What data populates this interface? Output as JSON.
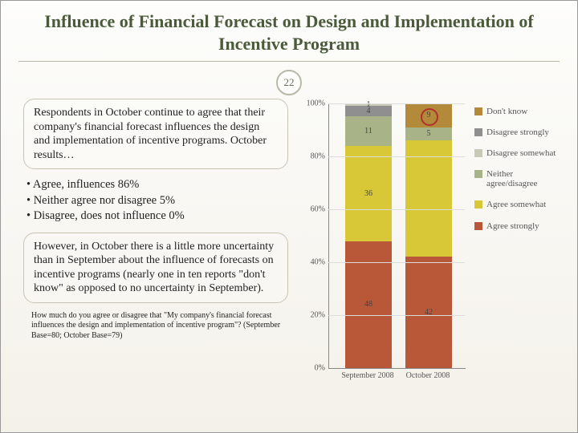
{
  "title": "Influence of Financial Forecast on Design and Implementation of Incentive Program",
  "page_number": "22",
  "box1": "Respondents in October continue to agree that their company's financial forecast influences the design and implementation of incentive programs.  October results…",
  "bullets": {
    "b1": "• Agree, influences 86%",
    "b2": "• Neither agree nor disagree 5%",
    "b3": "• Disagree, does not influence 0%"
  },
  "box2": "However, in October there is a little more uncertainty than in September about the influence of forecasts on incentive programs (nearly one in ten reports \"don't know\" as opposed to no uncertainty in September).",
  "footnote": "How much do you agree or disagree that \"My company's financial forecast influences the design and implementation of incentive program\"?  (September Base=80; October Base=79)",
  "chart": {
    "type": "stacked-bar-100",
    "ylim": [
      0,
      100
    ],
    "ytick_step": 20,
    "yticks": [
      "0%",
      "20%",
      "40%",
      "60%",
      "80%",
      "100%"
    ],
    "categories": [
      "September 2008",
      "October 2008"
    ],
    "legend": [
      {
        "label": "Don't know",
        "color": "#b28a3a"
      },
      {
        "label": "Disagree strongly",
        "color": "#8f8f8f"
      },
      {
        "label": "Disagree somewhat",
        "color": "#c9c9b8"
      },
      {
        "label": "Neither agree/disagree",
        "color": "#a8b488"
      },
      {
        "label": "Agree somewhat",
        "color": "#d8c838"
      },
      {
        "label": "Agree strongly",
        "color": "#b85838"
      }
    ],
    "series": {
      "sept": [
        {
          "v": 48,
          "c": "#b85838",
          "t": "48"
        },
        {
          "v": 36,
          "c": "#d8c838",
          "t": "36"
        },
        {
          "v": 11,
          "c": "#a8b488",
          "t": "11"
        },
        {
          "v": 4,
          "c": "#8f8f8f",
          "t": "4"
        },
        {
          "v": 1,
          "c": "#c9c9b8",
          "t": "1"
        }
      ],
      "oct": [
        {
          "v": 42,
          "c": "#b85838",
          "t": "42"
        },
        {
          "v": 44,
          "c": "#d8c838",
          "t": ""
        },
        {
          "v": 5,
          "c": "#a8b488",
          "t": "5"
        },
        {
          "v": 9,
          "c": "#b28a3a",
          "t": "9"
        }
      ]
    },
    "highlight_circle": true,
    "axis_color": "#888",
    "grid_color": "#ddd",
    "label_fontsize": 10
  }
}
